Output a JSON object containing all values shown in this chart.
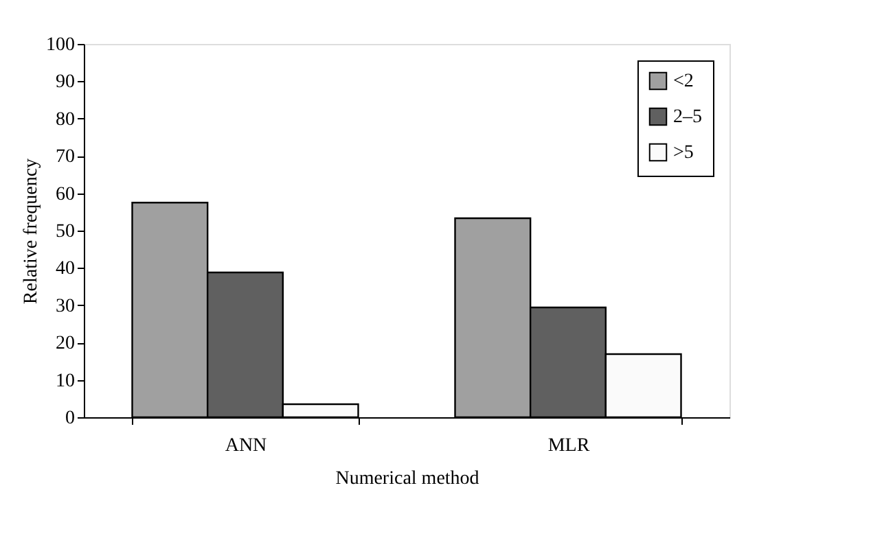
{
  "chart_data": {
    "type": "bar",
    "xlabel": "Numerical method",
    "ylabel": "Relative frequency",
    "categories": [
      "ANN",
      "MLR"
    ],
    "series": [
      {
        "name": "<2",
        "color": "#a0a0a0",
        "values": [
          57.5,
          53.3
        ]
      },
      {
        "name": "2–5",
        "color": "#606060",
        "values": [
          38.8,
          29.4
        ]
      },
      {
        "name": ">5",
        "color": "#fafafa",
        "values": [
          3.5,
          16.9
        ]
      }
    ],
    "ylim": [
      0,
      100
    ],
    "yticks": [
      0,
      10,
      20,
      30,
      40,
      50,
      60,
      70,
      80,
      90,
      100
    ],
    "grid": false,
    "legend": "top right"
  }
}
